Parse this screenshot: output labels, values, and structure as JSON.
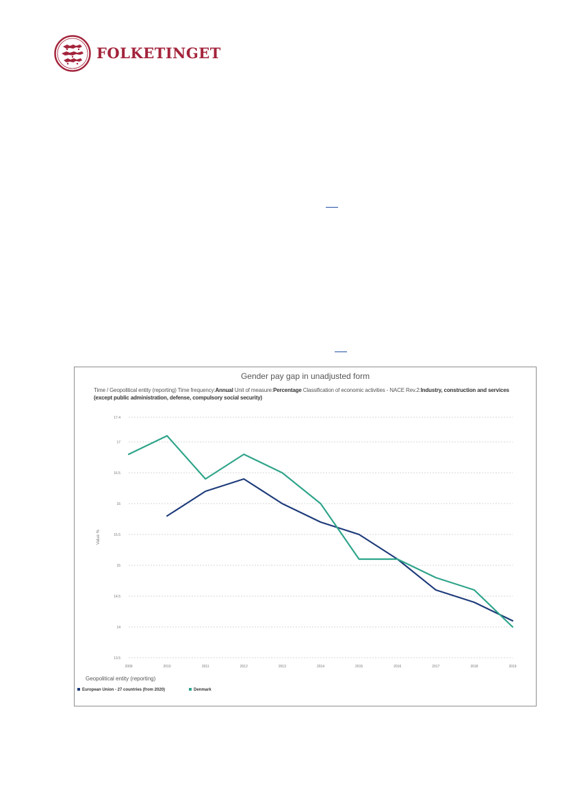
{
  "header": {
    "logo_text": "FOLKETINGET",
    "logo_icon": "three-lions-seal-icon",
    "brand_color": "#a3243b"
  },
  "chart_data": {
    "type": "line",
    "title": "Gender pay gap in unadjusted form",
    "subtitle_parts": [
      {
        "text": "Time / Geopolitical entity (reporting)  Time frequency:",
        "bold": false
      },
      {
        "text": "Annual",
        "bold": true
      },
      {
        "text": "  Unit of measure:",
        "bold": false
      },
      {
        "text": "Percentage",
        "bold": true
      },
      {
        "text": "  Classification of economic activities - NACE Rev.2:",
        "bold": false
      },
      {
        "text": "Industry, construction and services (except public administration, defense, compulsory social security)",
        "bold": true
      }
    ],
    "ylabel": "Value %",
    "ylim": [
      13.5,
      17.5
    ],
    "yticks": [
      "13.5",
      "14",
      "14.5",
      "15",
      "15.5",
      "16",
      "16.5",
      "17",
      "17.4"
    ],
    "x": [
      "2009",
      "2010",
      "2011",
      "2012",
      "2013",
      "2014",
      "2015",
      "2016",
      "2017",
      "2018",
      "2019"
    ],
    "grid": true,
    "legend_title": "Geopolitical entity (reporting)",
    "legend_placement": "bottom-left",
    "series": [
      {
        "name": "European Union - 27 countries (from 2020)",
        "color": "#1d3b7a",
        "values": [
          null,
          15.8,
          16.2,
          16.4,
          16.0,
          15.7,
          15.5,
          15.1,
          14.6,
          14.4,
          14.1
        ]
      },
      {
        "name": "Denmark",
        "color": "#2ea48a",
        "values": [
          16.8,
          17.1,
          16.4,
          16.8,
          16.5,
          16.0,
          15.1,
          15.1,
          14.8,
          14.6,
          14.0
        ]
      }
    ]
  }
}
